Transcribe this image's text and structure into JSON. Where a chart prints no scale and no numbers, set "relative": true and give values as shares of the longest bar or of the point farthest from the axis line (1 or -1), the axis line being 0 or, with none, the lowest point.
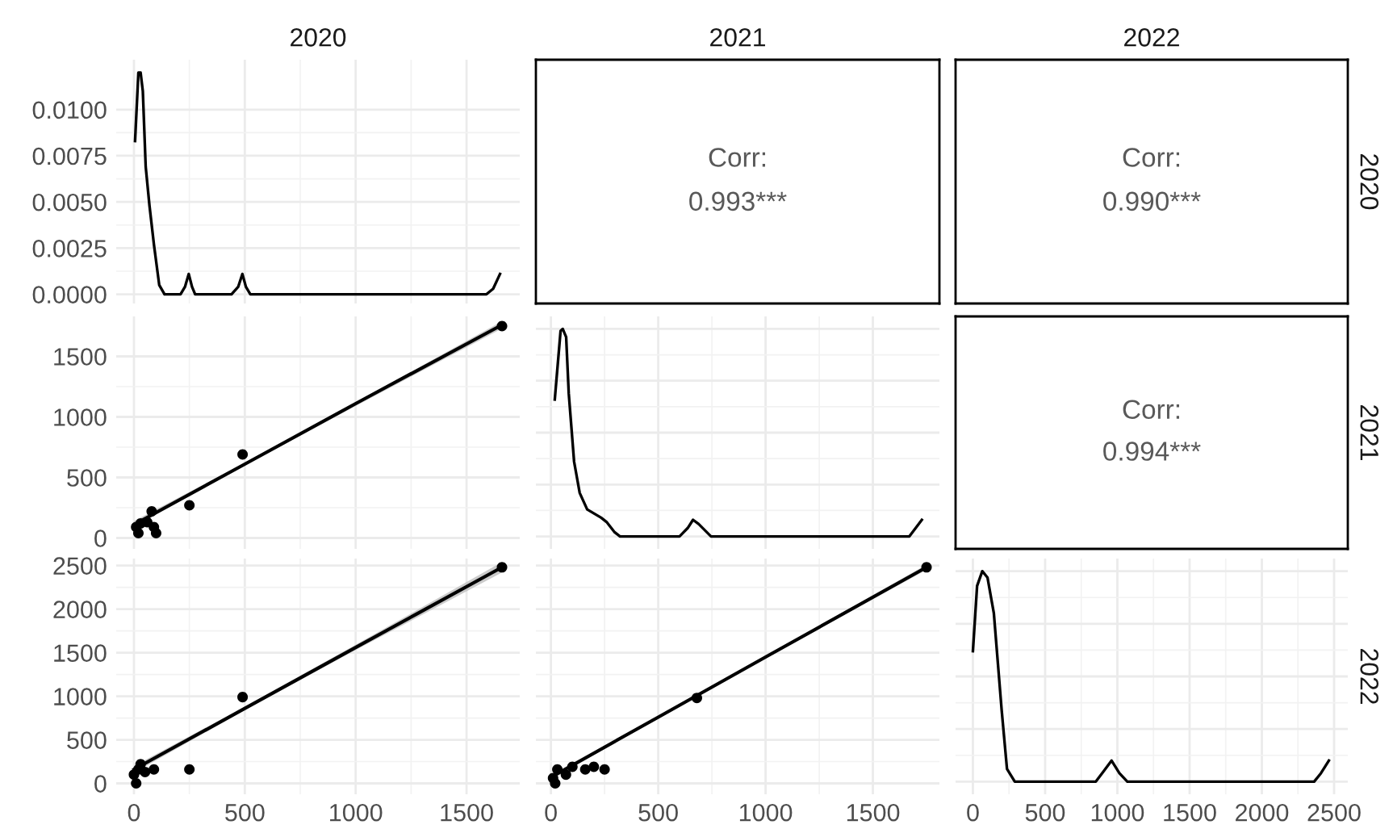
{
  "chart_data": [
    {
      "type": "line",
      "title": "2020",
      "tick_labels": "y",
      "grid": true,
      "xlim": [
        -80,
        1740
      ],
      "xticks": [
        0,
        500,
        1000,
        1500
      ],
      "ylim": [
        -0.0005,
        0.0127
      ],
      "yticks": [
        {
          "value": 0,
          "label": "0.0000"
        },
        {
          "value": 0.0025,
          "label": "0.0025"
        },
        {
          "value": 0.005,
          "label": "0.0050"
        },
        {
          "value": 0.0075,
          "label": "0.0075"
        },
        {
          "value": 0.01,
          "label": "0.0100"
        }
      ],
      "series": [
        {
          "color": "#000000",
          "x": [
            5,
            20,
            30,
            40,
            53,
            70,
            90,
            114,
            138,
            210,
            230,
            247,
            262,
            276,
            440,
            470,
            489,
            505,
            525,
            1590,
            1620,
            1651
          ],
          "values": [
            0.0083,
            0.012,
            0.012,
            0.011,
            0.0069,
            0.0048,
            0.0027,
            0.0005,
            0,
            0,
            0.0004,
            0.0011,
            0.0004,
            0,
            0,
            0.0004,
            0.0011,
            0.0004,
            0,
            0,
            0.0003,
            0.0011
          ]
        }
      ]
    },
    {
      "type": "other",
      "title": "2021",
      "annotations": [
        "Corr:",
        "0.993***"
      ]
    },
    {
      "type": "other",
      "title": "2022",
      "y2label": "2020",
      "annotations": [
        "Corr:",
        "0.990***"
      ]
    },
    {
      "type": "scatter",
      "tick_labels": "y",
      "grid": true,
      "xlim": [
        -80,
        1740
      ],
      "xticks": [
        0,
        500,
        1000,
        1500
      ],
      "ylim": [
        -90,
        1830
      ],
      "yticks": [
        0,
        500,
        1000,
        1500
      ],
      "series": [
        {
          "type": "scatter",
          "color": "#000000",
          "x": [
            1660,
            490,
            250,
            20,
            10,
            40,
            80,
            90,
            100,
            30,
            60
          ],
          "values": [
            1750,
            690,
            270,
            40,
            90,
            null,
            220,
            90,
            40,
            120,
            130
          ]
        },
        {
          "type": "line",
          "color": "#000000",
          "x": [
            0,
            500,
            1000,
            1660
          ],
          "values": [
            110,
            610,
            1110,
            1760
          ],
          "lower": [
            90,
            600,
            1090,
            1730
          ],
          "upper": [
            140,
            620,
            1120,
            1790
          ]
        }
      ]
    },
    {
      "type": "line",
      "relative": true,
      "tick_labels": false,
      "grid": true,
      "xlim": [
        -70,
        1810
      ],
      "xticks": [
        0,
        500,
        1000,
        1500
      ],
      "series": [
        {
          "color": "#000000",
          "x": [
            18,
            45,
            55,
            71,
            83,
            108,
            134,
            169,
            234,
            259,
            297,
            322,
            599,
            637,
            662,
            688,
            746,
            1670,
            1728
          ],
          "values": [
            0.66,
            0.99,
            1.0,
            0.96,
            0.69,
            0.36,
            0.21,
            0.13,
            0.09,
            0.07,
            0.02,
            0,
            0,
            0.04,
            0.08,
            0.06,
            0,
            0,
            0.08
          ]
        }
      ]
    },
    {
      "type": "other",
      "y2label": "2021",
      "annotations": [
        "Corr:",
        "0.994***"
      ]
    },
    {
      "type": "scatter",
      "grid": true,
      "xlim": [
        -80,
        1740
      ],
      "xticks": [
        0,
        500,
        1000,
        1500
      ],
      "ylim": [
        -125,
        2580
      ],
      "yticks": [
        0,
        500,
        1000,
        1500,
        2000,
        2500
      ],
      "series": [
        {
          "type": "scatter",
          "color": "#000000",
          "x": [
            1660,
            490,
            250,
            10,
            0,
            30,
            70,
            90,
            20,
            50
          ],
          "values": [
            2480,
            990,
            160,
            0,
            100,
            220,
            null,
            160,
            160,
            130
          ]
        },
        {
          "type": "line",
          "color": "#000000",
          "x": [
            0,
            500,
            1000,
            1660
          ],
          "values": [
            160,
            860,
            1560,
            2480
          ],
          "lower": [
            120,
            840,
            1530,
            2420
          ],
          "upper": [
            200,
            880,
            1590,
            2540
          ]
        }
      ]
    },
    {
      "type": "scatter",
      "tick_labels": "x",
      "grid": true,
      "xlim": [
        -70,
        1810
      ],
      "xticks": [
        0,
        500,
        1000,
        1500
      ],
      "ylim": [
        -125,
        2580
      ],
      "yticks": [
        0,
        500,
        1000,
        1500,
        2000,
        2500
      ],
      "series": [
        {
          "type": "scatter",
          "color": "#000000",
          "x": [
            1750,
            680,
            250,
            20,
            30,
            100,
            160,
            200,
            70,
            10
          ],
          "values": [
            2480,
            980,
            160,
            0,
            160,
            190,
            160,
            190,
            100,
            60
          ]
        },
        {
          "type": "line",
          "color": "#000000",
          "x": [
            0,
            500,
            1000,
            1750
          ],
          "values": [
            70,
            760,
            1450,
            2480
          ],
          "lower": [
            40,
            750,
            1440,
            2450
          ],
          "upper": [
            100,
            770,
            1460,
            2510
          ]
        }
      ]
    },
    {
      "type": "line",
      "relative": true,
      "tick_labels": "x",
      "grid": true,
      "y2label": "2022",
      "xlim": [
        -120,
        2595
      ],
      "xticks": [
        0,
        500,
        1000,
        1500,
        2000,
        2500
      ],
      "series": [
        {
          "color": "#000000",
          "x": [
            0,
            29,
            65,
            101,
            145,
            199,
            236,
            290,
            851,
            906,
            960,
            1014,
            1069,
            2362,
            2409,
            2464
          ],
          "values": [
            0.62,
            0.93,
            1.0,
            0.97,
            0.8,
            0.34,
            0.06,
            0,
            0,
            0.05,
            0.1,
            0.04,
            0,
            0,
            0.04,
            0.1
          ]
        }
      ]
    }
  ]
}
